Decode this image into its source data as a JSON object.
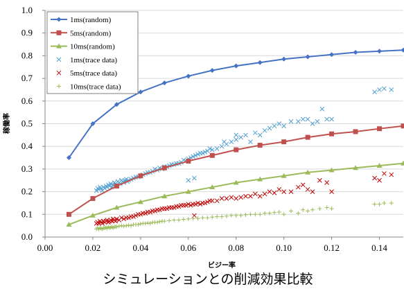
{
  "chart_data": {
    "type": "scatter",
    "title": "シミュレーションとの削減効果比較",
    "xlabel": "ビジー率",
    "ylabel": "稼働率",
    "xlim": [
      0,
      0.15
    ],
    "ylim": [
      0,
      1.0
    ],
    "x_ticks": [
      "0.00",
      "0.02",
      "0.04",
      "0.06",
      "0.08",
      "0.10",
      "0.12",
      "0.14"
    ],
    "y_ticks": [
      "0.0",
      "0.1",
      "0.2",
      "0.3",
      "0.4",
      "0.5",
      "0.6",
      "0.7",
      "0.8",
      "0.9",
      "1.0"
    ],
    "grid": true,
    "legend_position": "top-left",
    "series": [
      {
        "name": "1ms(random)",
        "kind": "line",
        "marker": "diamond",
        "color": "#4472c4",
        "x": [
          0.01,
          0.02,
          0.03,
          0.04,
          0.05,
          0.06,
          0.07,
          0.08,
          0.09,
          0.1,
          0.11,
          0.12,
          0.13,
          0.14,
          0.15
        ],
        "y": [
          0.35,
          0.5,
          0.585,
          0.64,
          0.68,
          0.71,
          0.735,
          0.755,
          0.77,
          0.785,
          0.795,
          0.805,
          0.815,
          0.82,
          0.825
        ]
      },
      {
        "name": "5ms(random)",
        "kind": "line",
        "marker": "square",
        "color": "#c0504d",
        "x": [
          0.01,
          0.02,
          0.03,
          0.04,
          0.05,
          0.06,
          0.07,
          0.08,
          0.09,
          0.1,
          0.11,
          0.12,
          0.13,
          0.14,
          0.15
        ],
        "y": [
          0.1,
          0.17,
          0.225,
          0.27,
          0.305,
          0.335,
          0.36,
          0.385,
          0.405,
          0.42,
          0.44,
          0.455,
          0.465,
          0.478,
          0.49
        ]
      },
      {
        "name": "10ms(random)",
        "kind": "line",
        "marker": "triangle",
        "color": "#9bbb59",
        "x": [
          0.01,
          0.02,
          0.03,
          0.04,
          0.05,
          0.06,
          0.07,
          0.08,
          0.09,
          0.1,
          0.11,
          0.12,
          0.13,
          0.14,
          0.15
        ],
        "y": [
          0.055,
          0.095,
          0.13,
          0.155,
          0.18,
          0.2,
          0.22,
          0.24,
          0.255,
          0.27,
          0.285,
          0.295,
          0.305,
          0.315,
          0.325
        ]
      },
      {
        "name": "1ms(trace data)",
        "kind": "scatter",
        "marker": "x",
        "color": "#4f9fd0",
        "x": [
          0.0215,
          0.022,
          0.0225,
          0.023,
          0.0235,
          0.024,
          0.0245,
          0.025,
          0.0255,
          0.026,
          0.0265,
          0.027,
          0.0275,
          0.028,
          0.0285,
          0.029,
          0.0295,
          0.03,
          0.0305,
          0.031,
          0.0315,
          0.032,
          0.0325,
          0.033,
          0.0335,
          0.034,
          0.0345,
          0.035,
          0.036,
          0.037,
          0.038,
          0.039,
          0.04,
          0.041,
          0.042,
          0.043,
          0.044,
          0.045,
          0.046,
          0.047,
          0.048,
          0.049,
          0.05,
          0.051,
          0.052,
          0.053,
          0.054,
          0.055,
          0.056,
          0.057,
          0.058,
          0.059,
          0.06,
          0.061,
          0.062,
          0.063,
          0.064,
          0.065,
          0.066,
          0.067,
          0.068,
          0.069,
          0.07,
          0.072,
          0.074,
          0.076,
          0.078,
          0.08,
          0.082,
          0.084,
          0.086,
          0.088,
          0.09,
          0.092,
          0.094,
          0.096,
          0.098,
          0.1,
          0.103,
          0.106,
          0.108,
          0.11,
          0.112,
          0.114,
          0.116,
          0.118,
          0.12,
          0.138,
          0.14,
          0.142,
          0.145,
          0.0625,
          0.08,
          0.06,
          0.075
        ],
        "y": [
          0.205,
          0.215,
          0.21,
          0.22,
          0.215,
          0.205,
          0.22,
          0.215,
          0.225,
          0.22,
          0.23,
          0.225,
          0.235,
          0.22,
          0.23,
          0.24,
          0.235,
          0.23,
          0.245,
          0.24,
          0.235,
          0.25,
          0.245,
          0.24,
          0.25,
          0.255,
          0.245,
          0.25,
          0.255,
          0.26,
          0.265,
          0.265,
          0.27,
          0.275,
          0.28,
          0.285,
          0.285,
          0.29,
          0.3,
          0.295,
          0.305,
          0.3,
          0.31,
          0.31,
          0.315,
          0.32,
          0.32,
          0.325,
          0.325,
          0.33,
          0.34,
          0.335,
          0.345,
          0.35,
          0.355,
          0.36,
          0.365,
          0.37,
          0.37,
          0.375,
          0.38,
          0.39,
          0.385,
          0.39,
          0.4,
          0.41,
          0.42,
          0.43,
          0.44,
          0.45,
          0.42,
          0.46,
          0.45,
          0.47,
          0.48,
          0.49,
          0.5,
          0.49,
          0.51,
          0.51,
          0.52,
          0.52,
          0.5,
          0.51,
          0.565,
          0.52,
          0.52,
          0.64,
          0.65,
          0.655,
          0.65,
          0.26,
          0.45,
          0.25,
          0.42
        ]
      },
      {
        "name": "5ms(trace data)",
        "kind": "scatter",
        "marker": "x",
        "color": "#c00000",
        "x": [
          0.0215,
          0.022,
          0.0225,
          0.023,
          0.0235,
          0.024,
          0.0245,
          0.025,
          0.0255,
          0.026,
          0.0265,
          0.027,
          0.0275,
          0.028,
          0.0285,
          0.029,
          0.0295,
          0.03,
          0.031,
          0.032,
          0.033,
          0.034,
          0.035,
          0.036,
          0.037,
          0.038,
          0.039,
          0.04,
          0.041,
          0.042,
          0.043,
          0.044,
          0.045,
          0.046,
          0.047,
          0.048,
          0.049,
          0.05,
          0.051,
          0.052,
          0.053,
          0.054,
          0.055,
          0.056,
          0.057,
          0.058,
          0.059,
          0.06,
          0.061,
          0.062,
          0.063,
          0.064,
          0.065,
          0.066,
          0.067,
          0.068,
          0.069,
          0.07,
          0.072,
          0.074,
          0.076,
          0.078,
          0.08,
          0.082,
          0.084,
          0.086,
          0.088,
          0.09,
          0.092,
          0.094,
          0.096,
          0.098,
          0.1,
          0.103,
          0.106,
          0.108,
          0.11,
          0.112,
          0.115,
          0.118,
          0.12,
          0.138,
          0.14,
          0.142,
          0.145,
          0.0625
        ],
        "y": [
          0.06,
          0.065,
          0.06,
          0.07,
          0.065,
          0.06,
          0.07,
          0.065,
          0.07,
          0.075,
          0.065,
          0.07,
          0.075,
          0.07,
          0.08,
          0.075,
          0.07,
          0.08,
          0.075,
          0.085,
          0.08,
          0.085,
          0.085,
          0.09,
          0.09,
          0.095,
          0.1,
          0.1,
          0.105,
          0.105,
          0.11,
          0.11,
          0.115,
          0.115,
          0.12,
          0.12,
          0.125,
          0.125,
          0.125,
          0.13,
          0.13,
          0.13,
          0.135,
          0.135,
          0.14,
          0.14,
          0.14,
          0.145,
          0.14,
          0.145,
          0.145,
          0.15,
          0.145,
          0.15,
          0.15,
          0.155,
          0.16,
          0.16,
          0.16,
          0.17,
          0.17,
          0.175,
          0.17,
          0.175,
          0.18,
          0.18,
          0.19,
          0.18,
          0.19,
          0.2,
          0.195,
          0.21,
          0.2,
          0.2,
          0.22,
          0.23,
          0.21,
          0.2,
          0.25,
          0.24,
          0.2,
          0.26,
          0.25,
          0.28,
          0.275,
          0.095
        ]
      },
      {
        "name": "10ms(trace data)",
        "kind": "scatter",
        "marker": "plus",
        "color": "#9bbb59",
        "x": [
          0.0215,
          0.022,
          0.0225,
          0.023,
          0.0235,
          0.024,
          0.0245,
          0.025,
          0.0255,
          0.026,
          0.0265,
          0.027,
          0.0275,
          0.028,
          0.0285,
          0.029,
          0.0295,
          0.03,
          0.031,
          0.032,
          0.033,
          0.034,
          0.035,
          0.036,
          0.037,
          0.038,
          0.039,
          0.04,
          0.041,
          0.042,
          0.043,
          0.044,
          0.045,
          0.046,
          0.047,
          0.048,
          0.049,
          0.05,
          0.052,
          0.054,
          0.056,
          0.058,
          0.06,
          0.062,
          0.064,
          0.066,
          0.068,
          0.07,
          0.072,
          0.074,
          0.076,
          0.078,
          0.08,
          0.082,
          0.084,
          0.086,
          0.088,
          0.09,
          0.092,
          0.094,
          0.096,
          0.098,
          0.1,
          0.103,
          0.106,
          0.108,
          0.11,
          0.112,
          0.115,
          0.118,
          0.12,
          0.138,
          0.14,
          0.142,
          0.145
        ],
        "y": [
          0.035,
          0.04,
          0.035,
          0.04,
          0.038,
          0.035,
          0.04,
          0.04,
          0.042,
          0.038,
          0.045,
          0.04,
          0.042,
          0.045,
          0.04,
          0.045,
          0.045,
          0.045,
          0.048,
          0.05,
          0.048,
          0.05,
          0.052,
          0.05,
          0.055,
          0.055,
          0.055,
          0.058,
          0.06,
          0.06,
          0.062,
          0.06,
          0.065,
          0.065,
          0.065,
          0.068,
          0.07,
          0.07,
          0.072,
          0.075,
          0.075,
          0.078,
          0.08,
          0.082,
          0.082,
          0.085,
          0.085,
          0.088,
          0.09,
          0.09,
          0.092,
          0.095,
          0.095,
          0.095,
          0.098,
          0.1,
          0.1,
          0.1,
          0.105,
          0.105,
          0.108,
          0.11,
          0.1,
          0.115,
          0.105,
          0.12,
          0.115,
          0.12,
          0.125,
          0.13,
          0.125,
          0.145,
          0.145,
          0.15,
          0.15
        ]
      }
    ]
  }
}
